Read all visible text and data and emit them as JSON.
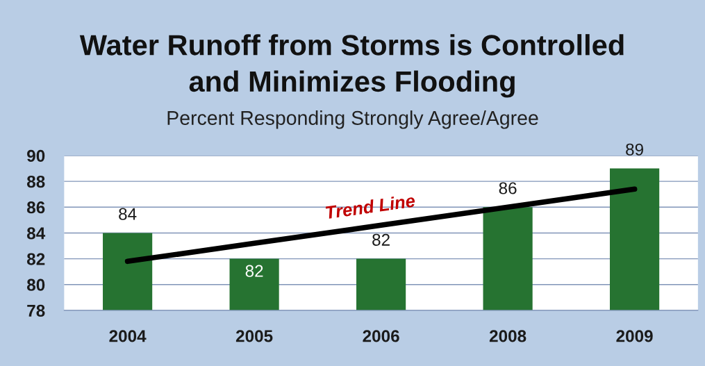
{
  "chart_data": {
    "type": "bar",
    "title": "Water Runoff from Storms is Controlled\nand Minimizes Flooding",
    "subtitle": "Percent Responding Strongly Agree/Agree",
    "categories": [
      "2004",
      "2005",
      "2006",
      "2008",
      "2009"
    ],
    "series": [
      {
        "color": "#267331",
        "values": [
          84,
          82,
          82,
          86,
          89
        ],
        "value_labels": [
          "84",
          "82",
          "82",
          "86",
          "89"
        ]
      },
      {
        "type": "line",
        "values": [
          81.8,
          83.2,
          84.6,
          86.0,
          87.4
        ],
        "color": "#000000",
        "marker": "none",
        "line_style": "solid"
      }
    ],
    "ylim": [
      78,
      90
    ],
    "yticks": [
      78,
      80,
      82,
      84,
      86,
      88,
      90
    ],
    "grid": "y",
    "legend": false,
    "annotations": [
      "Trend Line"
    ]
  }
}
